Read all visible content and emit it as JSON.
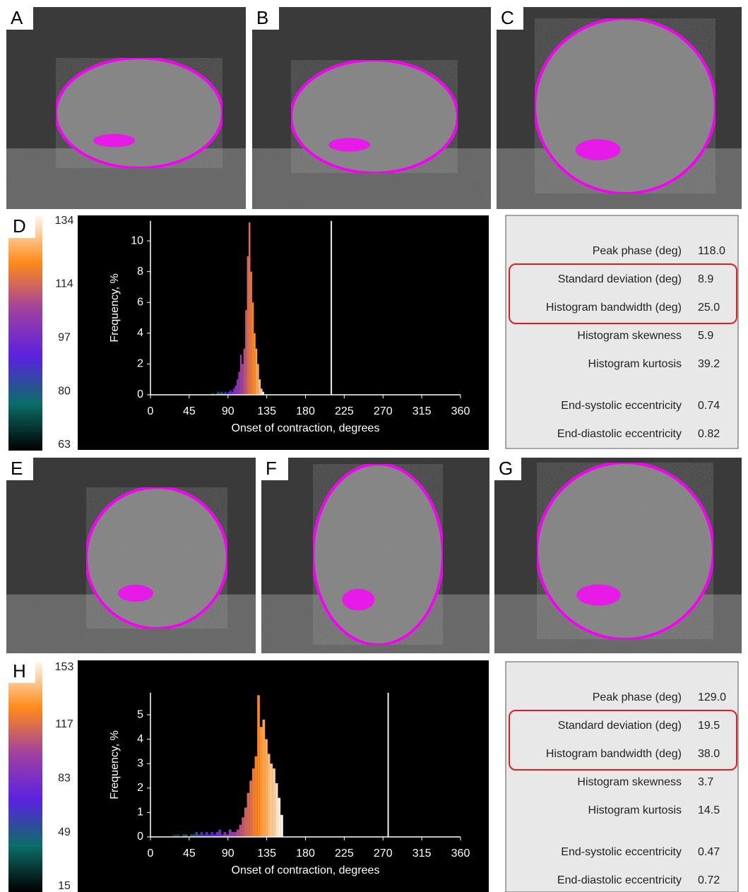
{
  "panels": [
    "A",
    "B",
    "C",
    "D",
    "E",
    "F",
    "G",
    "H"
  ],
  "chart_data": [
    {
      "type": "histogram",
      "xlabel": "Onset of contraction, degrees",
      "ylabel": "Frequency, %",
      "bins": [
        70,
        72,
        74,
        76,
        78,
        80,
        82,
        84,
        86,
        88,
        90,
        92,
        94,
        96,
        98,
        100,
        102,
        104,
        106,
        108,
        110,
        112,
        114,
        116,
        118,
        120,
        122,
        124,
        126,
        128,
        130,
        132
      ],
      "values": [
        0.1,
        0.1,
        0,
        0.1,
        0.2,
        0.1,
        0.2,
        0.1,
        0.2,
        0.1,
        0.2,
        0.3,
        0.2,
        0.4,
        0.6,
        1,
        1.5,
        2.6,
        2,
        3,
        5.5,
        9,
        11.2,
        8,
        6,
        4,
        3,
        2,
        1,
        0.4,
        0.2
      ],
      "marker_x": 210,
      "xlim": [
        0,
        360
      ],
      "xticks": [
        0,
        45,
        90,
        135,
        180,
        225,
        270,
        315,
        360
      ],
      "ylim": [
        0,
        11.3
      ],
      "yticks": [
        0,
        2,
        4,
        6,
        8,
        10
      ],
      "colorbar": {
        "lim": [
          63,
          134
        ],
        "ticks": [
          63,
          80,
          97,
          114,
          134
        ]
      },
      "colormap": [
        "#000000",
        "#0b6e68",
        "#5a22e0",
        "#a040a0",
        "#ff8a1a",
        "#fff8ee"
      ]
    },
    {
      "type": "histogram",
      "xlabel": "Onset of contraction, degrees",
      "ylabel": "Frequency, %",
      "bins": [
        25,
        28,
        31,
        34,
        37,
        40,
        43,
        46,
        49,
        52,
        55,
        58,
        61,
        64,
        67,
        70,
        73,
        76,
        79,
        82,
        85,
        88,
        91,
        94,
        97,
        100,
        103,
        106,
        109,
        112,
        115,
        118,
        121,
        124,
        127,
        130,
        133,
        136,
        139,
        142,
        145,
        148,
        151,
        154
      ],
      "values": [
        0.1,
        0.1,
        0.1,
        0,
        0.1,
        0.1,
        0,
        0.1,
        0.1,
        0.2,
        0.1,
        0.2,
        0.1,
        0.2,
        0.1,
        0.2,
        0.1,
        0.2,
        0.3,
        0.1,
        0.2,
        0.1,
        0.3,
        0.2,
        0.2,
        0.3,
        0.5,
        0.8,
        1.2,
        1.8,
        2.3,
        2.8,
        3.3,
        5.8,
        4.5,
        4.8,
        4,
        3.4,
        3,
        2.8,
        2.2,
        1.6,
        0.9
      ],
      "marker_x": 276,
      "xlim": [
        0,
        360
      ],
      "xticks": [
        0,
        45,
        90,
        135,
        180,
        225,
        270,
        315,
        360
      ],
      "ylim": [
        0,
        5.9
      ],
      "yticks": [
        0,
        1,
        2,
        3,
        4,
        5
      ],
      "colorbar": {
        "lim": [
          15,
          153
        ],
        "ticks": [
          15,
          49,
          83,
          117,
          153
        ]
      },
      "colormap": [
        "#000000",
        "#0b6e68",
        "#5a22e0",
        "#a040a0",
        "#ff8a1a",
        "#fff8ee"
      ]
    }
  ],
  "tables": [
    {
      "rows": [
        [
          "Peak phase (deg)",
          "118.0"
        ],
        [
          "Standard deviation (deg)",
          "8.9"
        ],
        [
          "Histogram bandwidth (deg)",
          "25.0"
        ],
        [
          "Histogram skewness",
          "5.9"
        ],
        [
          "Histogram kurtosis",
          "39.2"
        ],
        [
          "End-systolic eccentricity",
          "0.74"
        ],
        [
          "End-diastolic eccentricity",
          "0.82"
        ]
      ],
      "highlight": [
        1,
        2
      ]
    },
    {
      "rows": [
        [
          "Peak phase (deg)",
          "129.0"
        ],
        [
          "Standard deviation (deg)",
          "19.5"
        ],
        [
          "Histogram bandwidth (deg)",
          "38.0"
        ],
        [
          "Histogram skewness",
          "3.7"
        ],
        [
          "Histogram kurtosis",
          "14.5"
        ],
        [
          "End-systolic eccentricity",
          "0.47"
        ],
        [
          "End-diastolic eccentricity",
          "0.72"
        ]
      ],
      "highlight": [
        1,
        2
      ]
    }
  ]
}
